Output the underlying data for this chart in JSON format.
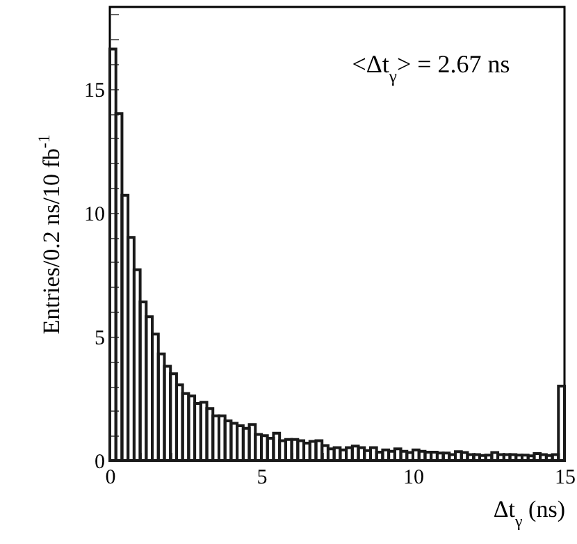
{
  "chart_data": {
    "type": "histogram",
    "xlabel": "Δt$_{γ}$ (ns)",
    "ylabel": "Entries/0.2 ns/10 fb$^{-1}$",
    "annotations": [
      "<Δt$_{γ}$> = 2.67 ns"
    ],
    "bins": [
      0,
      0.2,
      0.4,
      0.6,
      0.8,
      1,
      1.2,
      1.4,
      1.6,
      1.8,
      2,
      2.2,
      2.4,
      2.6,
      2.8,
      3,
      3.2,
      3.4,
      3.6,
      3.8,
      4,
      4.2,
      4.4,
      4.6,
      4.8,
      5,
      5.2,
      5.4,
      5.6,
      5.8,
      6,
      6.2,
      6.4,
      6.6,
      6.8,
      7,
      7.2,
      7.4,
      7.6,
      7.8,
      8,
      8.2,
      8.4,
      8.6,
      8.8,
      9,
      9.2,
      9.4,
      9.6,
      9.8,
      10,
      10.2,
      10.4,
      10.6,
      10.8,
      11,
      11.2,
      11.4,
      11.6,
      11.8,
      12,
      12.2,
      12.4,
      12.6,
      12.8,
      13,
      13.2,
      13.4,
      13.6,
      13.8,
      14,
      14.2,
      14.4,
      14.6,
      14.8,
      15
    ],
    "values": [
      16.6,
      14.0,
      10.7,
      9.0,
      7.7,
      6.4,
      5.8,
      5.1,
      4.3,
      3.8,
      3.5,
      3.05,
      2.7,
      2.6,
      2.3,
      2.35,
      2.1,
      1.8,
      1.8,
      1.6,
      1.5,
      1.4,
      1.3,
      1.45,
      1.05,
      1.0,
      0.9,
      1.1,
      0.8,
      0.85,
      0.85,
      0.8,
      0.7,
      0.77,
      0.8,
      0.6,
      0.47,
      0.52,
      0.43,
      0.52,
      0.58,
      0.52,
      0.4,
      0.52,
      0.34,
      0.43,
      0.37,
      0.47,
      0.37,
      0.32,
      0.43,
      0.37,
      0.34,
      0.34,
      0.3,
      0.3,
      0.24,
      0.36,
      0.32,
      0.24,
      0.24,
      0.2,
      0.22,
      0.32,
      0.24,
      0.24,
      0.24,
      0.22,
      0.22,
      0.19,
      0.28,
      0.24,
      0.2,
      0.24,
      3.0
    ],
    "color": "#1a1a1a",
    "xlim": [
      0,
      15
    ],
    "xticks": [
      0,
      {
        "value": 1,
        "label": null
      },
      {
        "value": 2,
        "label": null
      },
      {
        "value": 3,
        "label": null
      },
      {
        "value": 4,
        "label": null
      },
      5,
      {
        "value": 6,
        "label": null
      },
      {
        "value": 7,
        "label": null
      },
      {
        "value": 8,
        "label": null
      },
      {
        "value": 9,
        "label": null
      },
      10,
      {
        "value": 11,
        "label": null
      },
      {
        "value": 12,
        "label": null
      },
      {
        "value": 13,
        "label": null
      },
      {
        "value": 14,
        "label": null
      },
      15
    ],
    "ylim": [
      0,
      18.3
    ],
    "yticks": [
      0,
      {
        "value": 1,
        "label": null
      },
      {
        "value": 2,
        "label": null
      },
      {
        "value": 3,
        "label": null
      },
      {
        "value": 4,
        "label": null
      },
      5,
      {
        "value": 6,
        "label": null
      },
      {
        "value": 7,
        "label": null
      },
      {
        "value": 8,
        "label": null
      },
      {
        "value": 9,
        "label": null
      },
      10,
      {
        "value": 11,
        "label": null
      },
      {
        "value": 12,
        "label": null
      },
      {
        "value": 13,
        "label": null
      },
      {
        "value": 14,
        "label": null
      },
      15,
      {
        "value": 16,
        "label": null
      },
      {
        "value": 17,
        "label": null
      },
      {
        "value": 18,
        "label": null
      }
    ],
    "grid": false
  }
}
